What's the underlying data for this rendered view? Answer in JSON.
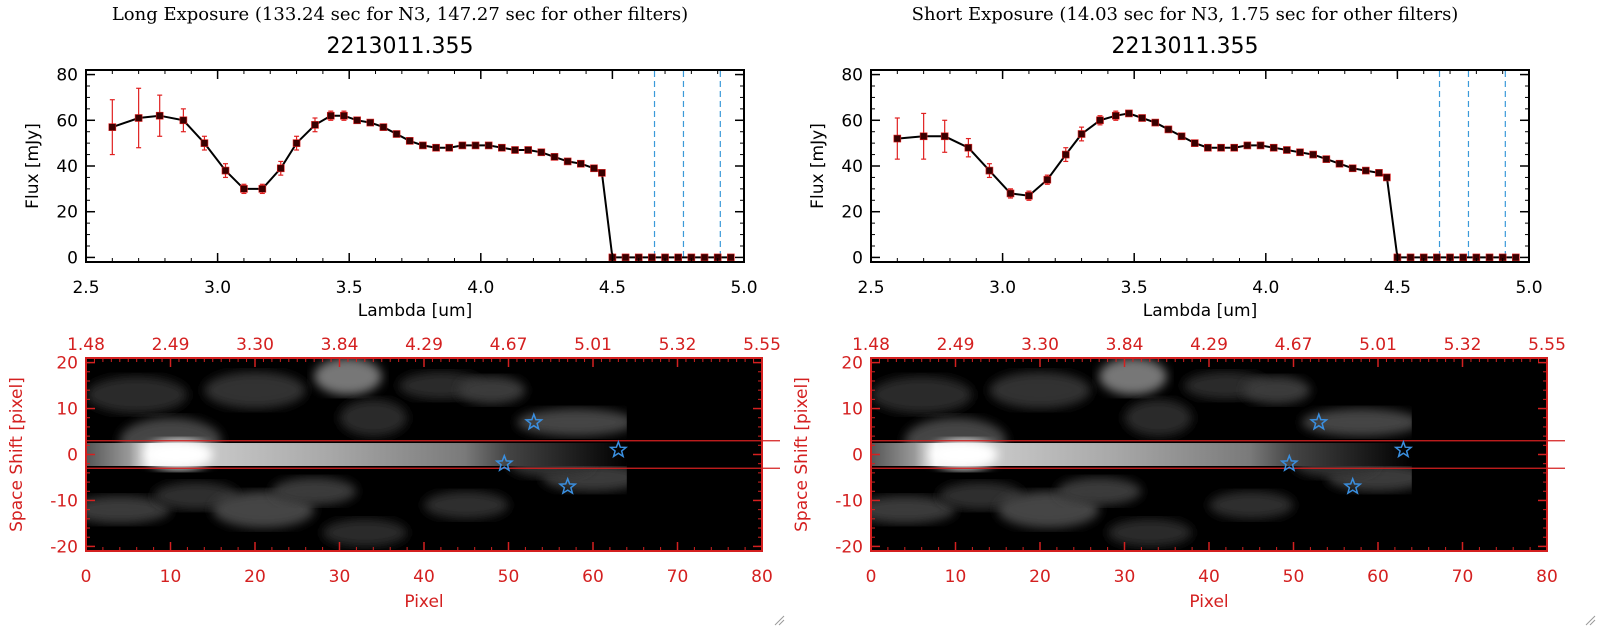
{
  "chart_data": [
    {
      "type": "line",
      "exposure_title": "Long Exposure (133.24 sec for N3, 147.27 sec for other filters)",
      "title": "2213011.355",
      "xlabel": "Lambda [um]",
      "ylabel": "Flux [mJy]",
      "xlim": [
        2.5,
        5.0
      ],
      "ylim": [
        -2,
        82
      ],
      "xticks": [
        2.5,
        3.0,
        3.5,
        4.0,
        4.5,
        5.0
      ],
      "xtick_labels": [
        "2.5",
        "3.0",
        "3.5",
        "4.0",
        "4.5",
        "5.0"
      ],
      "yticks": [
        0,
        20,
        40,
        60,
        80
      ],
      "ytick_labels": [
        "0",
        "20",
        "40",
        "60",
        "80"
      ],
      "series": [
        {
          "name": "flux",
          "x": [
            2.6,
            2.7,
            2.78,
            2.87,
            2.95,
            3.03,
            3.1,
            3.17,
            3.24,
            3.3,
            3.37,
            3.43,
            3.48,
            3.53,
            3.58,
            3.63,
            3.68,
            3.73,
            3.78,
            3.83,
            3.88,
            3.93,
            3.98,
            4.03,
            4.08,
            4.13,
            4.18,
            4.23,
            4.28,
            4.33,
            4.38,
            4.43,
            4.46,
            4.5,
            4.55,
            4.6,
            4.65,
            4.7,
            4.75,
            4.8,
            4.85,
            4.9,
            4.95
          ],
          "y": [
            57,
            61,
            62,
            60,
            50,
            38,
            30,
            30,
            39,
            50,
            58,
            62,
            62,
            60,
            59,
            57,
            54,
            51,
            49,
            48,
            48,
            49,
            49,
            49,
            48,
            47,
            47,
            46,
            44,
            42,
            41,
            39,
            37,
            0,
            0,
            0,
            0,
            0,
            0,
            0,
            0,
            0,
            0
          ],
          "err": [
            12,
            13,
            9,
            5,
            3,
            3,
            2,
            2,
            3,
            3,
            3,
            2,
            2,
            1,
            1,
            1,
            1,
            1,
            1,
            1,
            1,
            1,
            1,
            1,
            1,
            1,
            1,
            1,
            1,
            1,
            1,
            1,
            1,
            0,
            0,
            0,
            0,
            0,
            0,
            0,
            0,
            0,
            0
          ]
        }
      ],
      "vlines": [
        4.66,
        4.77,
        4.91
      ],
      "image": {
        "xlabel": "Pixel",
        "ylabel": "Space Shift [pixel]",
        "xlim": [
          0,
          80
        ],
        "ylim": [
          -21,
          21
        ],
        "xticks": [
          0,
          10,
          20,
          30,
          40,
          50,
          60,
          70,
          80
        ],
        "xtick_labels": [
          "0",
          "10",
          "20",
          "30",
          "40",
          "50",
          "60",
          "70",
          "80"
        ],
        "yticks": [
          -20,
          -10,
          0,
          10,
          20
        ],
        "ytick_labels": [
          "-20",
          "-10",
          "0",
          "10",
          "20"
        ],
        "top_axis_labels": [
          "1.48",
          "2.49",
          "3.30",
          "3.84",
          "4.29",
          "4.67",
          "5.01",
          "5.32",
          "5.55"
        ],
        "band_lines": [
          3,
          -3
        ],
        "stars": [
          {
            "x": 53,
            "y": 7
          },
          {
            "x": 63,
            "y": 1
          },
          {
            "x": 49.5,
            "y": -2
          },
          {
            "x": 57,
            "y": -7
          }
        ]
      }
    },
    {
      "type": "line",
      "exposure_title": "Short Exposure (14.03 sec for N3, 1.75 sec for other filters)",
      "title": "2213011.355",
      "xlabel": "Lambda [um]",
      "ylabel": "Flux [mJy]",
      "xlim": [
        2.5,
        5.0
      ],
      "ylim": [
        -2,
        82
      ],
      "xticks": [
        2.5,
        3.0,
        3.5,
        4.0,
        4.5,
        5.0
      ],
      "xtick_labels": [
        "2.5",
        "3.0",
        "3.5",
        "4.0",
        "4.5",
        "5.0"
      ],
      "yticks": [
        0,
        20,
        40,
        60,
        80
      ],
      "ytick_labels": [
        "0",
        "20",
        "40",
        "60",
        "80"
      ],
      "series": [
        {
          "name": "flux",
          "x": [
            2.6,
            2.7,
            2.78,
            2.87,
            2.95,
            3.03,
            3.1,
            3.17,
            3.24,
            3.3,
            3.37,
            3.43,
            3.48,
            3.53,
            3.58,
            3.63,
            3.68,
            3.73,
            3.78,
            3.83,
            3.88,
            3.93,
            3.98,
            4.03,
            4.08,
            4.13,
            4.18,
            4.23,
            4.28,
            4.33,
            4.38,
            4.43,
            4.46,
            4.5,
            4.55,
            4.6,
            4.65,
            4.7,
            4.75,
            4.8,
            4.85,
            4.9,
            4.95
          ],
          "y": [
            52,
            53,
            53,
            48,
            38,
            28,
            27,
            34,
            45,
            54,
            60,
            62,
            63,
            61,
            59,
            56,
            53,
            50,
            48,
            48,
            48,
            49,
            49,
            48,
            47,
            46,
            45,
            43,
            41,
            39,
            38,
            37,
            35,
            0,
            0,
            0,
            0,
            0,
            0,
            0,
            0,
            0,
            0
          ],
          "err": [
            9,
            10,
            7,
            4,
            3,
            2,
            2,
            2,
            3,
            3,
            2,
            2,
            1,
            1,
            1,
            1,
            1,
            1,
            1,
            1,
            1,
            1,
            1,
            1,
            1,
            1,
            1,
            1,
            1,
            1,
            1,
            1,
            1,
            0,
            0,
            0,
            0,
            0,
            0,
            0,
            0,
            0,
            0
          ]
        }
      ],
      "vlines": [
        4.66,
        4.77,
        4.91
      ],
      "image": {
        "xlabel": "Pixel",
        "ylabel": "Space Shift [pixel]",
        "xlim": [
          0,
          80
        ],
        "ylim": [
          -21,
          21
        ],
        "xticks": [
          0,
          10,
          20,
          30,
          40,
          50,
          60,
          70,
          80
        ],
        "xtick_labels": [
          "0",
          "10",
          "20",
          "30",
          "40",
          "50",
          "60",
          "70",
          "80"
        ],
        "yticks": [
          -20,
          -10,
          0,
          10,
          20
        ],
        "ytick_labels": [
          "-20",
          "-10",
          "0",
          "10",
          "20"
        ],
        "top_axis_labels": [
          "1.48",
          "2.49",
          "3.30",
          "3.84",
          "4.29",
          "4.67",
          "5.01",
          "5.32",
          "5.55"
        ],
        "band_lines": [
          3,
          -3
        ],
        "stars": [
          {
            "x": 53,
            "y": 7
          },
          {
            "x": 63,
            "y": 1
          },
          {
            "x": 49.5,
            "y": -2
          },
          {
            "x": 57,
            "y": -7
          }
        ]
      }
    }
  ],
  "colors": {
    "line": "#000000",
    "marker": "#3a0000",
    "error_bar": "#e02020",
    "vline": "#3a9ad9",
    "axis_red": "#d42020",
    "star": "#3a8fe0",
    "image_bg": "#000000"
  }
}
